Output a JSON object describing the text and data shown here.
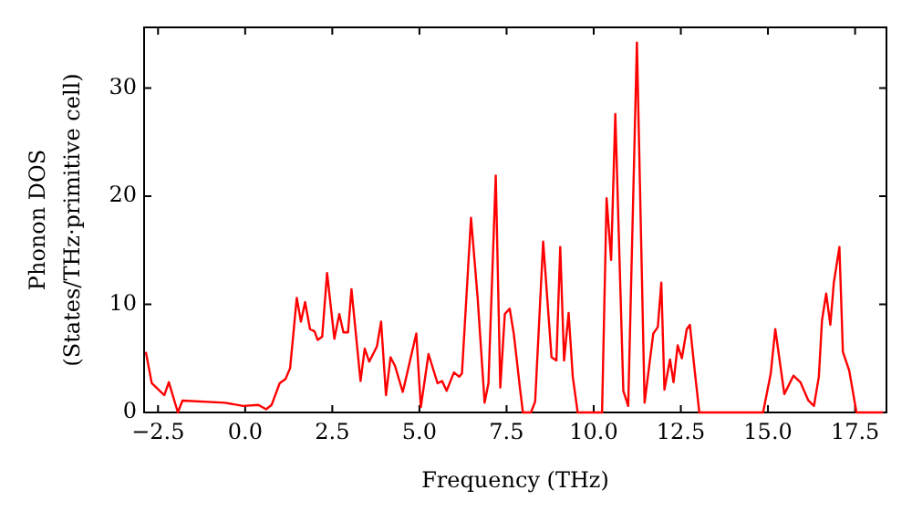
{
  "chart_data": {
    "type": "line",
    "xlabel": "Frequency (THz)",
    "ylabel": "Phonon DOS\n(States/THz·primitive cell)",
    "xlim": [
      -2.9,
      18.4
    ],
    "ylim": [
      0,
      35.6
    ],
    "xticks": [
      {
        "value": -2.5,
        "label": "−2.5"
      },
      {
        "value": 0,
        "label": "0.0"
      },
      2.5,
      {
        "value": 5,
        "label": "5.0"
      },
      7.5,
      {
        "value": 10,
        "label": "10.0"
      },
      12.5,
      {
        "value": 15,
        "label": "15.0"
      },
      17.5
    ],
    "yticks": [
      0,
      10,
      20,
      30
    ],
    "grid": false,
    "legend": false,
    "marker": "none",
    "line_style": "solid",
    "series": [
      {
        "color": "#ff0000",
        "x": [
          -2.85,
          -2.68,
          -2.32,
          -2.19,
          -1.93,
          -1.8,
          -0.58,
          -0.06,
          0.38,
          0.6,
          0.76,
          0.99,
          1.16,
          1.29,
          1.48,
          1.6,
          1.72,
          1.86,
          1.99,
          2.08,
          2.21,
          2.35,
          2.56,
          2.7,
          2.82,
          2.95,
          3.05,
          3.31,
          3.43,
          3.56,
          3.78,
          3.9,
          4.04,
          4.17,
          4.3,
          4.52,
          4.56,
          4.91,
          5.04,
          5.26,
          5.52,
          5.65,
          5.78,
          5.99,
          6.14,
          6.22,
          6.48,
          6.67,
          6.87,
          6.98,
          7.19,
          7.32,
          7.45,
          7.59,
          7.71,
          7.89,
          7.97,
          8.2,
          8.32,
          8.55,
          8.79,
          8.93,
          9.04,
          9.15,
          9.28,
          9.4,
          9.54,
          10.24,
          10.37,
          10.5,
          10.62,
          10.85,
          10.99,
          11.24,
          11.46,
          11.71,
          11.84,
          11.94,
          12.03,
          12.19,
          12.29,
          12.41,
          12.53,
          12.67,
          12.76,
          12.88,
          13.03,
          14.86,
          15.08,
          15.21,
          15.47,
          15.73,
          15.93,
          16.16,
          16.32,
          16.46,
          16.55,
          16.67,
          16.79,
          16.89,
          17.05,
          17.15,
          17.33,
          17.54,
          18.3
        ],
        "values": [
          5.6,
          2.7,
          1.6,
          2.8,
          0,
          1.1,
          0.9,
          0.6,
          0.7,
          0.3,
          0.7,
          2.7,
          3.1,
          4.1,
          10.6,
          8.4,
          10.2,
          7.7,
          7.5,
          6.7,
          7.0,
          12.9,
          6.8,
          9.1,
          7.4,
          7.4,
          11.4,
          2.9,
          5.9,
          4.7,
          6.1,
          8.4,
          1.6,
          5.1,
          4.3,
          1.9,
          2.4,
          7.3,
          0.5,
          5.4,
          2.7,
          2.9,
          2.0,
          3.7,
          3.3,
          3.6,
          18.0,
          10.6,
          0.9,
          2.7,
          21.9,
          2.3,
          9.1,
          9.6,
          7.2,
          2.1,
          0,
          0,
          1.0,
          15.8,
          5.1,
          4.8,
          15.3,
          4.8,
          9.2,
          3.3,
          0,
          0,
          19.8,
          14.1,
          27.6,
          2.0,
          0.6,
          34.2,
          0.9,
          7.3,
          7.9,
          12.0,
          2.1,
          4.9,
          2.8,
          6.2,
          5.0,
          7.7,
          8.1,
          4.4,
          0,
          0,
          3.6,
          7.7,
          1.7,
          3.4,
          2.8,
          1.1,
          0.6,
          3.3,
          8.5,
          11.0,
          8.1,
          12.0,
          15.3,
          5.6,
          3.9,
          0,
          0
        ]
      }
    ]
  }
}
